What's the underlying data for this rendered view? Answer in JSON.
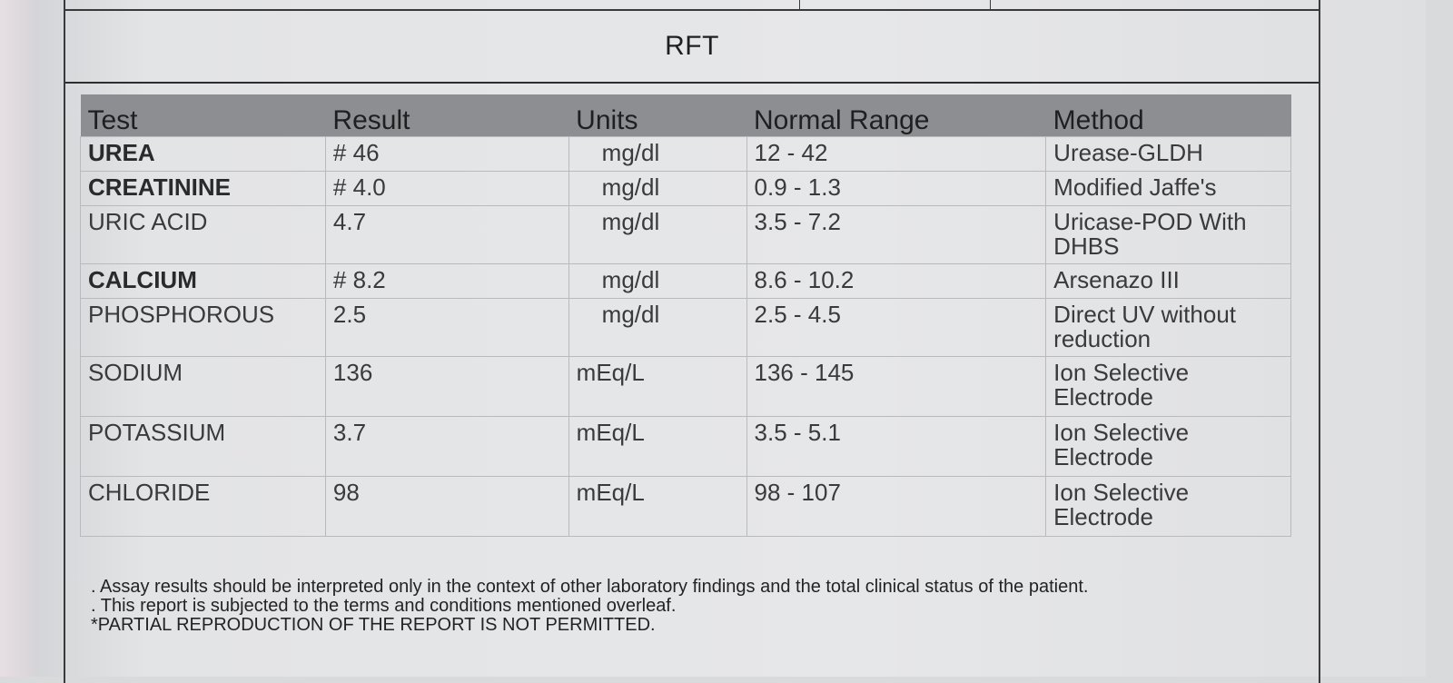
{
  "report": {
    "section_title": "RFT"
  },
  "table": {
    "headers": {
      "test": "Test",
      "result": "Result",
      "units": "Units",
      "range": "Normal Range",
      "method": "Method"
    },
    "rows": [
      {
        "test": "UREA",
        "result": "# 46",
        "units": "mg/dl",
        "range": "12 - 42",
        "method": "Urease-GLDH",
        "bold": true
      },
      {
        "test": "CREATININE",
        "result": "# 4.0",
        "units": "mg/dl",
        "range": "0.9 - 1.3",
        "method": "Modified Jaffe's",
        "bold": true
      },
      {
        "test": "URIC ACID",
        "result": "4.7",
        "units": "mg/dl",
        "range": "3.5 - 7.2",
        "method": "Uricase-POD With DHBS",
        "bold": false
      },
      {
        "test": "CALCIUM",
        "result": "# 8.2",
        "units": "mg/dl",
        "range": "8.6 - 10.2",
        "method": "Arsenazo III",
        "bold": true
      },
      {
        "test": "PHOSPHOROUS",
        "result": "2.5",
        "units": "mg/dl",
        "range": "2.5 - 4.5",
        "method": "Direct UV without reduction",
        "bold": false
      },
      {
        "test": "SODIUM",
        "result": "136",
        "units": "mEq/L",
        "range": "136 - 145",
        "method": "Ion Selective Electrode",
        "bold": false
      },
      {
        "test": "POTASSIUM",
        "result": "3.7",
        "units": "mEq/L",
        "range": "3.5 - 5.1",
        "method": "Ion Selective Electrode",
        "bold": false
      },
      {
        "test": "CHLORIDE",
        "result": "98",
        "units": "mEq/L",
        "range": "98 - 107",
        "method": "Ion Selective Electrode",
        "bold": false
      }
    ]
  },
  "notes": {
    "line1": ". Assay results should be interpreted only in the context of other laboratory findings and the total clinical status of the patient.",
    "line2": ". This report is subjected to the terms and conditions mentioned overleaf.",
    "line3": "*PARTIAL REPRODUCTION OF THE REPORT IS NOT PERMITTED."
  }
}
